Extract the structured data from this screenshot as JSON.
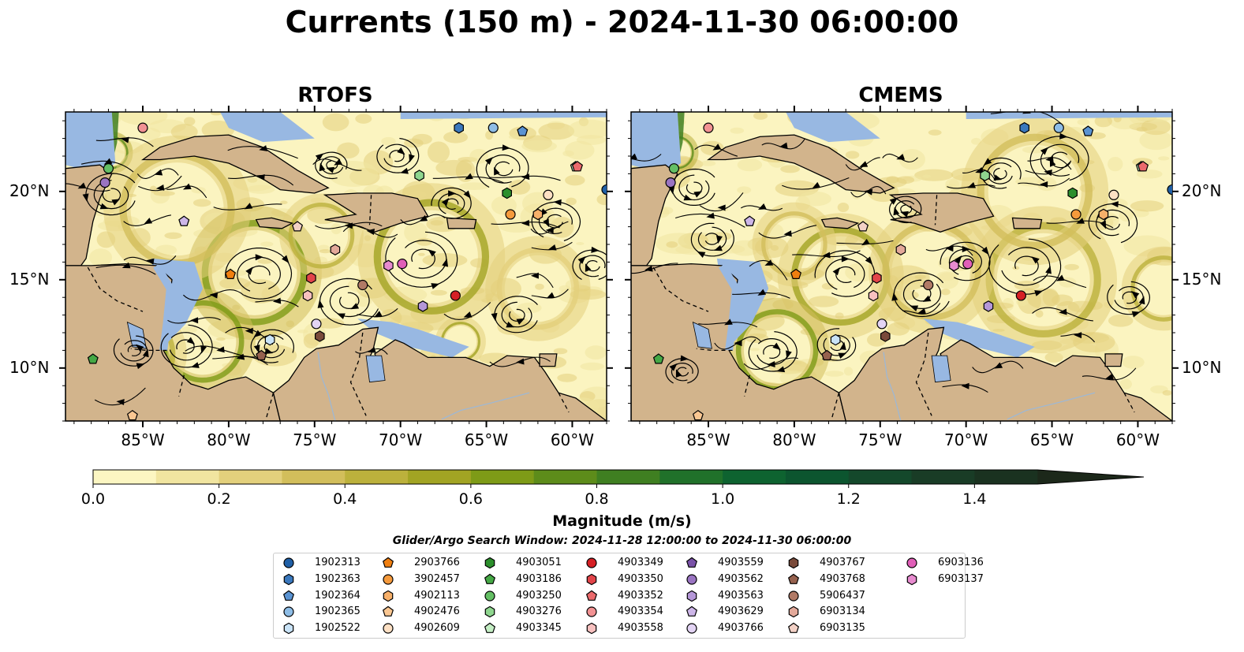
{
  "title": "Currents (150 m) - 2024-11-30 06:00:00",
  "panels": [
    {
      "title": "RTOFS"
    },
    {
      "title": "CMEMS"
    }
  ],
  "axes": {
    "lon_ticks": [
      "85°W",
      "80°W",
      "75°W",
      "70°W",
      "65°W",
      "60°W"
    ],
    "lat_ticks": [
      "20°N",
      "15°N",
      "10°N"
    ]
  },
  "colorbar": {
    "label": "Magnitude (m/s)",
    "ticks": [
      "0.0",
      "0.2",
      "0.4",
      "0.6",
      "0.8",
      "1.0",
      "1.2",
      "1.4"
    ],
    "colors": [
      "#fcf6c2",
      "#f1e5a0",
      "#e3d07c",
      "#d2be5b",
      "#bcb13c",
      "#a2a423",
      "#7e9b17",
      "#5d8c1a",
      "#3f7f21",
      "#20712a",
      "#0e6330",
      "#0c552f",
      "#14482b",
      "#193c26",
      "#1a3220",
      "#1c281a"
    ],
    "range": [
      0.0,
      1.6
    ]
  },
  "search_window": "Glider/Argo Search Window: 2024-11-28 12:00:00 to 2024-11-30 06:00:00",
  "legend": [
    {
      "id": "1902313",
      "shape": "circle",
      "color": "#1f5fa6"
    },
    {
      "id": "1902363",
      "shape": "hexagon",
      "color": "#3a78bd"
    },
    {
      "id": "1902364",
      "shape": "pentagon",
      "color": "#5a93d2"
    },
    {
      "id": "1902365",
      "shape": "circle",
      "color": "#8ebde6"
    },
    {
      "id": "1902522",
      "shape": "hexagon",
      "color": "#c9e3f7"
    },
    {
      "id": "2903766",
      "shape": "pentagon",
      "color": "#f07f10"
    },
    {
      "id": "3902457",
      "shape": "circle",
      "color": "#f59a3c"
    },
    {
      "id": "4902113",
      "shape": "hexagon",
      "color": "#f7b06a"
    },
    {
      "id": "4902476",
      "shape": "pentagon",
      "color": "#fac792"
    },
    {
      "id": "4902609",
      "shape": "circle",
      "color": "#fde0c4"
    },
    {
      "id": "4903051",
      "shape": "hexagon",
      "color": "#2c8f2c"
    },
    {
      "id": "4903186",
      "shape": "pentagon",
      "color": "#45a845"
    },
    {
      "id": "4903250",
      "shape": "circle",
      "color": "#64bf64"
    },
    {
      "id": "4903276",
      "shape": "hexagon",
      "color": "#8fd68f"
    },
    {
      "id": "4903345",
      "shape": "pentagon",
      "color": "#c4eec4"
    },
    {
      "id": "4903349",
      "shape": "circle",
      "color": "#d62025"
    },
    {
      "id": "4903350",
      "shape": "hexagon",
      "color": "#e24449"
    },
    {
      "id": "4903352",
      "shape": "pentagon",
      "color": "#eb6a6c"
    },
    {
      "id": "4903354",
      "shape": "circle",
      "color": "#f29293"
    },
    {
      "id": "4903558",
      "shape": "hexagon",
      "color": "#f8c1c0"
    },
    {
      "id": "4903559",
      "shape": "pentagon",
      "color": "#7a52a8"
    },
    {
      "id": "4903562",
      "shape": "circle",
      "color": "#9a74c2"
    },
    {
      "id": "4903563",
      "shape": "hexagon",
      "color": "#b597d8"
    },
    {
      "id": "4903629",
      "shape": "pentagon",
      "color": "#cdb6e8"
    },
    {
      "id": "4903766",
      "shape": "circle",
      "color": "#e3d4f4"
    },
    {
      "id": "4903767",
      "shape": "hexagon",
      "color": "#7a4a3a"
    },
    {
      "id": "4903768",
      "shape": "pentagon",
      "color": "#96614e"
    },
    {
      "id": "5906437",
      "shape": "circle",
      "color": "#b17a66"
    },
    {
      "id": "6903134",
      "shape": "hexagon",
      "color": "#e3a99a"
    },
    {
      "id": "6903135",
      "shape": "pentagon",
      "color": "#f3d1c6"
    },
    {
      "id": "6903136",
      "shape": "circle",
      "color": "#e05fb8"
    },
    {
      "id": "6903137",
      "shape": "hexagon",
      "color": "#e78bcf"
    }
  ],
  "map_style": {
    "land": "#d2b48c",
    "shallow_water": "#98b8e2",
    "ocean_base": "#fbf4c0",
    "streamline": "#000000"
  },
  "lon_range": [
    -89.5,
    -58.0
  ],
  "lat_range": [
    7.0,
    24.5
  ]
}
